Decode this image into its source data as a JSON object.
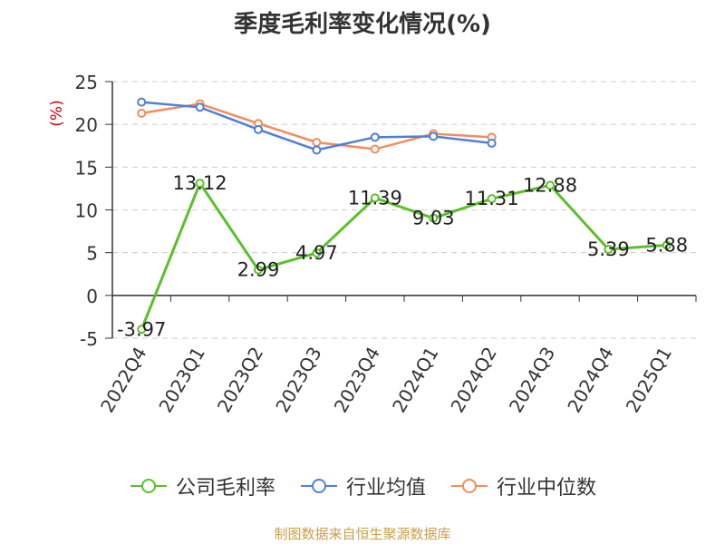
{
  "chart_data": {
    "type": "line",
    "title": "季度毛利率变化情况(%)",
    "ylabel": "(%)",
    "ylim": [
      -5,
      25
    ],
    "yticks": [
      "25",
      "20",
      "15",
      "10",
      "5",
      "0",
      "-5"
    ],
    "categories": [
      "2022Q4",
      "2023Q1",
      "2023Q2",
      "2023Q3",
      "2023Q4",
      "2024Q1",
      "2024Q2",
      "2024Q3",
      "2024Q4",
      "2025Q1"
    ],
    "series": [
      {
        "name": "公司毛利率",
        "color": "#5cbf2a",
        "values": [
          -3.97,
          13.12,
          2.99,
          4.97,
          11.39,
          9.03,
          11.31,
          12.88,
          5.39,
          5.88
        ],
        "labels": [
          "-3.97",
          "13.12",
          "2.99",
          "4.97",
          "11.39",
          "9.03",
          "11.31",
          "12.88",
          "5.39",
          "5.88"
        ]
      },
      {
        "name": "行业均值",
        "color": "#4f7fd9",
        "values": [
          22.6,
          22.0,
          19.4,
          17.0,
          18.5,
          18.6,
          17.8,
          null,
          null,
          null
        ]
      },
      {
        "name": "行业中位数",
        "color": "#f28d5b",
        "values": [
          21.3,
          22.4,
          20.1,
          17.9,
          17.1,
          18.9,
          18.5,
          null,
          null,
          null
        ]
      }
    ],
    "grid": true,
    "legend_position": "bottom"
  },
  "footer": {
    "source": "制图数据来自恒生聚源数据库"
  }
}
